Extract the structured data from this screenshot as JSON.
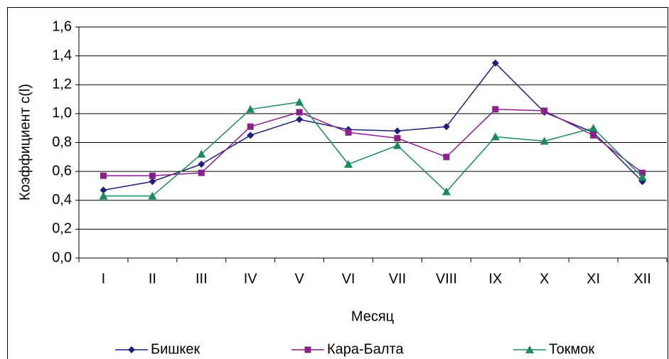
{
  "chart_data": {
    "type": "line",
    "x_label": "Месяц",
    "y_label": "Коэффициент с(l)",
    "categories": [
      "I",
      "II",
      "III",
      "IV",
      "V",
      "VI",
      "VII",
      "VIII",
      "IX",
      "X",
      "XI",
      "XII"
    ],
    "series": [
      {
        "name": "Бишкек",
        "color": "#1f1f78",
        "marker": "diamond",
        "values": [
          0.47,
          0.53,
          0.65,
          0.85,
          0.96,
          0.89,
          0.88,
          0.91,
          1.35,
          1.01,
          0.87,
          0.53
        ]
      },
      {
        "name": "Кара-Балта",
        "color": "#8b1f8b",
        "marker": "square",
        "values": [
          0.57,
          0.57,
          0.59,
          0.91,
          1.01,
          0.87,
          0.83,
          0.7,
          1.03,
          1.02,
          0.85,
          0.59
        ]
      },
      {
        "name": "Токмок",
        "color": "#1a8a5a",
        "marker": "triangle",
        "values": [
          0.43,
          0.43,
          0.72,
          1.03,
          1.08,
          0.65,
          0.78,
          0.46,
          0.84,
          0.81,
          0.9,
          0.56
        ]
      }
    ],
    "ylim": [
      0,
      1.6
    ],
    "yticks": [
      {
        "value": 0,
        "label": "0,0"
      },
      {
        "value": 0.2,
        "label": "0,2"
      },
      {
        "value": 0.4,
        "label": "0,4"
      },
      {
        "value": 0.6,
        "label": "0,6"
      },
      {
        "value": 0.8,
        "label": "0,8"
      },
      {
        "value": 1.0,
        "label": "1,0"
      },
      {
        "value": 1.2,
        "label": "1,2"
      },
      {
        "value": 1.4,
        "label": "1,4"
      },
      {
        "value": 1.6,
        "label": "1,6"
      }
    ],
    "grid": true,
    "legend": "bottom"
  }
}
